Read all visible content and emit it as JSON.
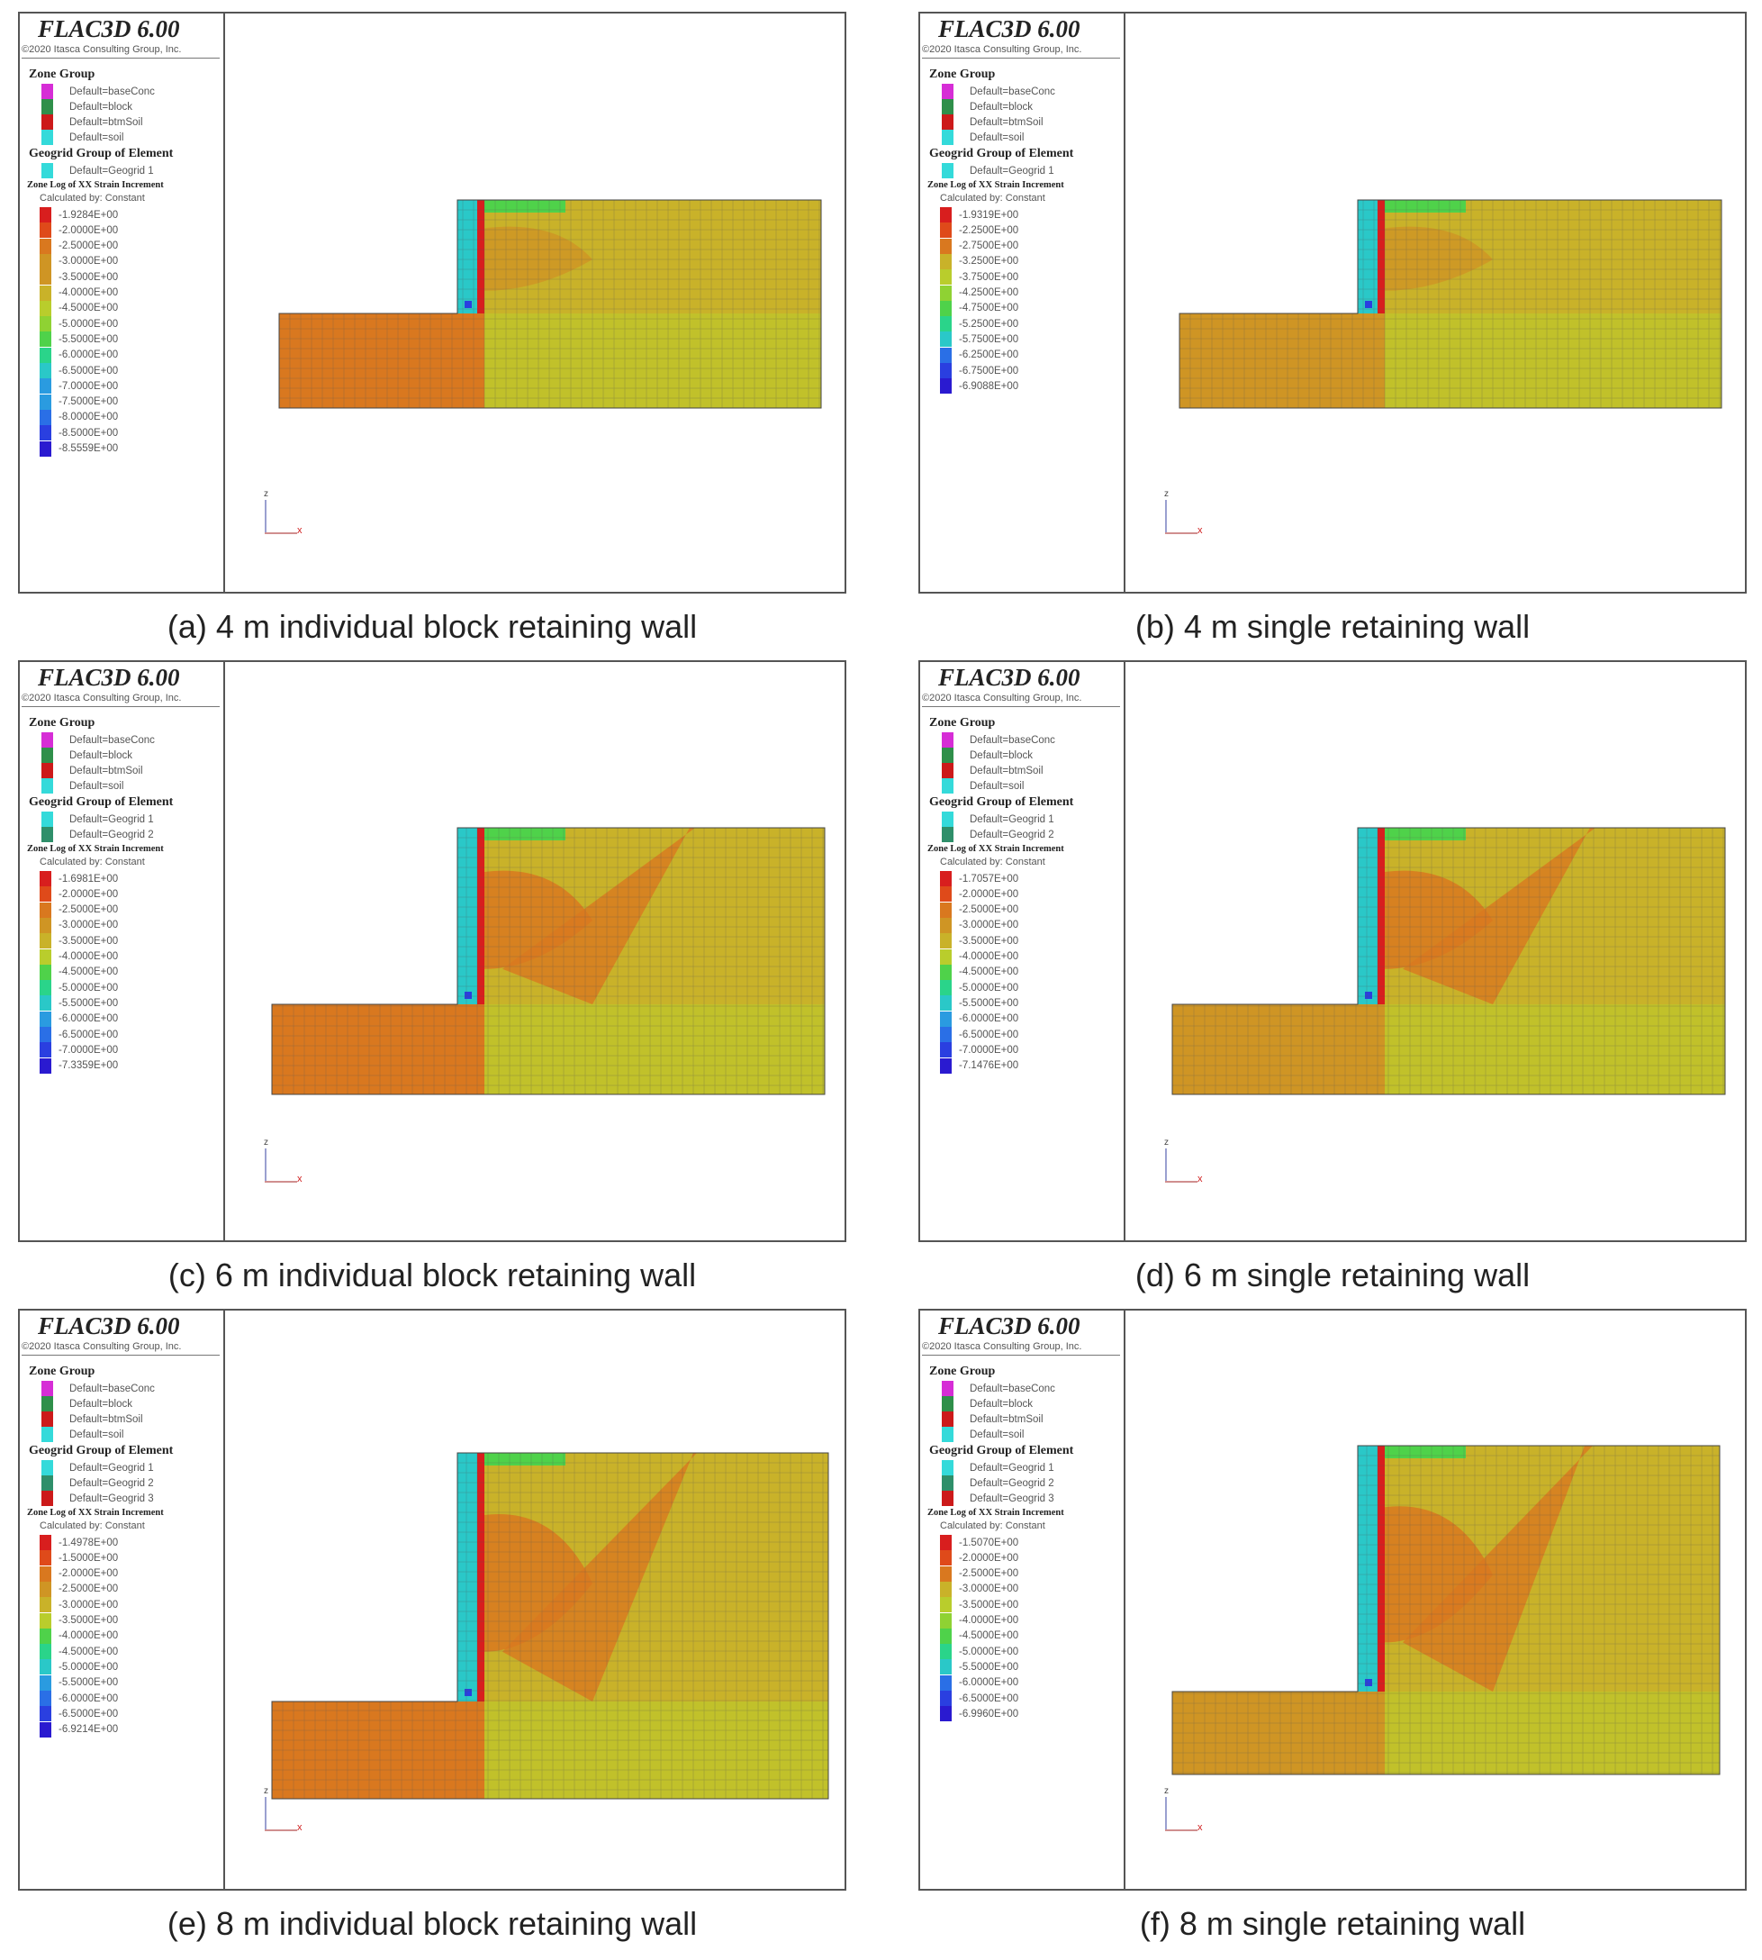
{
  "app_title": "FLAC3D 6.00",
  "copyright": "©2020 Itasca Consulting Group, Inc.",
  "zone_group_title": "Zone Group",
  "zone_groups": [
    {
      "label": "Default=baseConc",
      "color": "#d62dd6"
    },
    {
      "label": "Default=block",
      "color": "#2f8f4a"
    },
    {
      "label": "Default=btmSoil",
      "color": "#cc1a1a"
    },
    {
      "label": "Default=soil",
      "color": "#34dada"
    }
  ],
  "geogrid_title": "Geogrid Group of Element",
  "geogrid_colors": [
    "#34dada",
    "#2f8f6a",
    "#cc1a1a"
  ],
  "contour_title": "Zone Log of XX Strain Increment",
  "calculated_by": "Calculated by: Constant",
  "panels": [
    {
      "caption": "(a) 4 m individual block retaining wall",
      "geogrids": [
        "Default=Geogrid 1"
      ],
      "colorbar": [
        "-1.9284E+00",
        "-2.0000E+00",
        "-2.5000E+00",
        "-3.0000E+00",
        "-3.5000E+00",
        "-4.0000E+00",
        "-4.5000E+00",
        "-5.0000E+00",
        "-5.5000E+00",
        "-6.0000E+00",
        "-6.5000E+00",
        "-7.0000E+00",
        "-7.5000E+00",
        "-8.0000E+00",
        "-8.5000E+00",
        "-8.5559E+00"
      ]
    },
    {
      "caption": "(b) 4 m single retaining wall",
      "geogrids": [
        "Default=Geogrid 1"
      ],
      "colorbar": [
        "-1.9319E+00",
        "-2.2500E+00",
        "-2.7500E+00",
        "-3.2500E+00",
        "-3.7500E+00",
        "-4.2500E+00",
        "-4.7500E+00",
        "-5.2500E+00",
        "-5.7500E+00",
        "-6.2500E+00",
        "-6.7500E+00",
        "-6.9088E+00"
      ]
    },
    {
      "caption": "(c) 6 m individual block retaining wall",
      "geogrids": [
        "Default=Geogrid 1",
        "Default=Geogrid 2"
      ],
      "colorbar": [
        "-1.6981E+00",
        "-2.0000E+00",
        "-2.5000E+00",
        "-3.0000E+00",
        "-3.5000E+00",
        "-4.0000E+00",
        "-4.5000E+00",
        "-5.0000E+00",
        "-5.5000E+00",
        "-6.0000E+00",
        "-6.5000E+00",
        "-7.0000E+00",
        "-7.3359E+00"
      ]
    },
    {
      "caption": "(d) 6 m single retaining wall",
      "geogrids": [
        "Default=Geogrid 1",
        "Default=Geogrid 2"
      ],
      "colorbar": [
        "-1.7057E+00",
        "-2.0000E+00",
        "-2.5000E+00",
        "-3.0000E+00",
        "-3.5000E+00",
        "-4.0000E+00",
        "-4.5000E+00",
        "-5.0000E+00",
        "-5.5000E+00",
        "-6.0000E+00",
        "-6.5000E+00",
        "-7.0000E+00",
        "-7.1476E+00"
      ]
    },
    {
      "caption": "(e) 8 m individual block retaining wall",
      "geogrids": [
        "Default=Geogrid 1",
        "Default=Geogrid 2",
        "Default=Geogrid 3"
      ],
      "colorbar": [
        "-1.4978E+00",
        "-1.5000E+00",
        "-2.0000E+00",
        "-2.5000E+00",
        "-3.0000E+00",
        "-3.5000E+00",
        "-4.0000E+00",
        "-4.5000E+00",
        "-5.0000E+00",
        "-5.5000E+00",
        "-6.0000E+00",
        "-6.5000E+00",
        "-6.9214E+00"
      ]
    },
    {
      "caption": "(f) 8 m single retaining wall",
      "geogrids": [
        "Default=Geogrid 1",
        "Default=Geogrid 2",
        "Default=Geogrid 3"
      ],
      "colorbar": [
        "-1.5070E+00",
        "-2.0000E+00",
        "-2.5000E+00",
        "-3.0000E+00",
        "-3.5000E+00",
        "-4.0000E+00",
        "-4.5000E+00",
        "-5.0000E+00",
        "-5.5000E+00",
        "-6.0000E+00",
        "-6.5000E+00",
        "-6.9960E+00"
      ]
    }
  ],
  "axis_labels": {
    "z": "z",
    "x": "x"
  },
  "contour_colors": [
    "#d81e1e",
    "#df4a1a",
    "#d9781f",
    "#cf9524",
    "#c9b229",
    "#b9cd2c",
    "#8fd233",
    "#4fd24a",
    "#2ad48a",
    "#2ac8c8",
    "#2a9be0",
    "#2a6fe6",
    "#2a3fe0",
    "#2a1ad0"
  ]
}
